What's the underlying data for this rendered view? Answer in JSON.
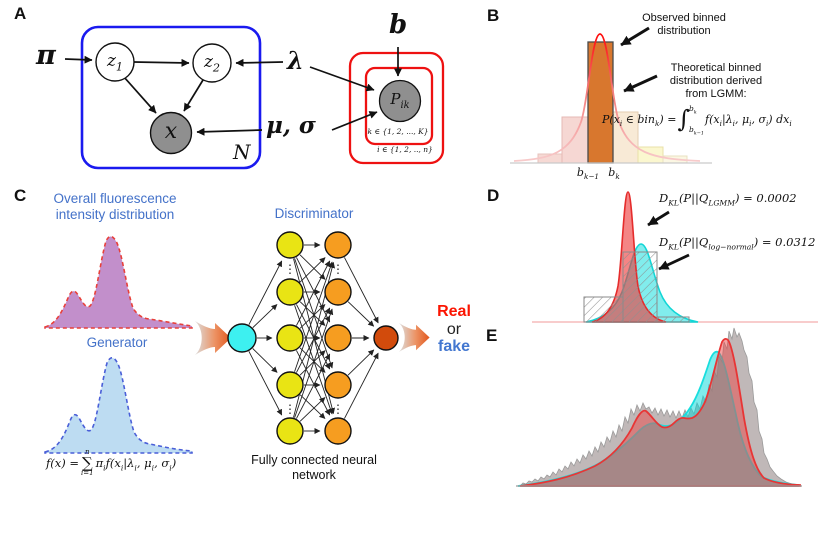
{
  "panel_a": {
    "label": "A",
    "pi": "π",
    "lambda": "λ",
    "b": "b",
    "mu_sigma": "μ, σ",
    "z1_html": "z<sub>1</sub>",
    "z2_html": "z<sub>2</sub>",
    "x": "x",
    "N": "N",
    "pik_html": "P<sub>ik</sub>",
    "plate_k_html": "k ∈ {1, 2, ..., K}",
    "plate_i_html": "i ∈ {1, 2, .., n}"
  },
  "panel_b": {
    "label": "B",
    "obs_annotation": "Observed binned distribution",
    "theo_annotation": "Theoretical binned distribution derived from LGMM:",
    "formula_lhs_html": "P(x<sub>i</sub> ∈ bin<sub>k</sub>) = ",
    "integral_upper_html": "b<sub>k</sub>",
    "integral_lower_html": "b<sub>k−1</sub>",
    "integrand_html": "f(x<sub>i</sub>|λ<sub>i</sub>, μ<sub>i</sub>, σ<sub>i</sub>) dx<sub>i</sub>",
    "xtick_left_html": "b<sub>k−1</sub>",
    "xtick_right_html": "b<sub>k</sub>"
  },
  "panel_c": {
    "label": "C",
    "overall_label": "Overall fluorescence intensity distribution",
    "generator_label": "Generator",
    "discriminator_label": "Discriminator",
    "fc_label": "Fully connected neural network",
    "real": "Real",
    "or": "or",
    "fake": "fake",
    "formula_lhs_html": "f(x) = ",
    "sum_top": "n",
    "sum_symbol": "∑",
    "sum_bottom": "i=1",
    "formula_rhs_html": "π<sub>i</sub>f(x<sub>i</sub>|λ<sub>i</sub>, μ<sub>i</sub>, σ<sub>i</sub>)",
    "network": {
      "layers": [
        {
          "name": "input",
          "nodes": 1,
          "color": "#3df0f0"
        },
        {
          "name": "hidden-1",
          "nodes": 5,
          "color": "#e9e414"
        },
        {
          "name": "hidden-2",
          "nodes": 5,
          "color": "#f69d20"
        },
        {
          "name": "output",
          "nodes": 1,
          "color": "#d24b0c"
        }
      ]
    }
  },
  "panel_d": {
    "label": "D",
    "kl1_html": "D<sub>KL</sub>(P||Q<sub>LGMM</sub>) = 0.0002",
    "kl2_html": "D<sub>KL</sub>(P||Q<sub>log−normal</sub>) = 0.0312"
  },
  "panel_e": {
    "label": "E"
  },
  "colors": {
    "plate_blue": "#1a1aef",
    "plate_red": "#ee1111",
    "accent_blue": "#4472c9",
    "real_red": "#fb1502",
    "fake_blue": "#4377d0",
    "highlight_bar_orange": "#d8772e"
  }
}
